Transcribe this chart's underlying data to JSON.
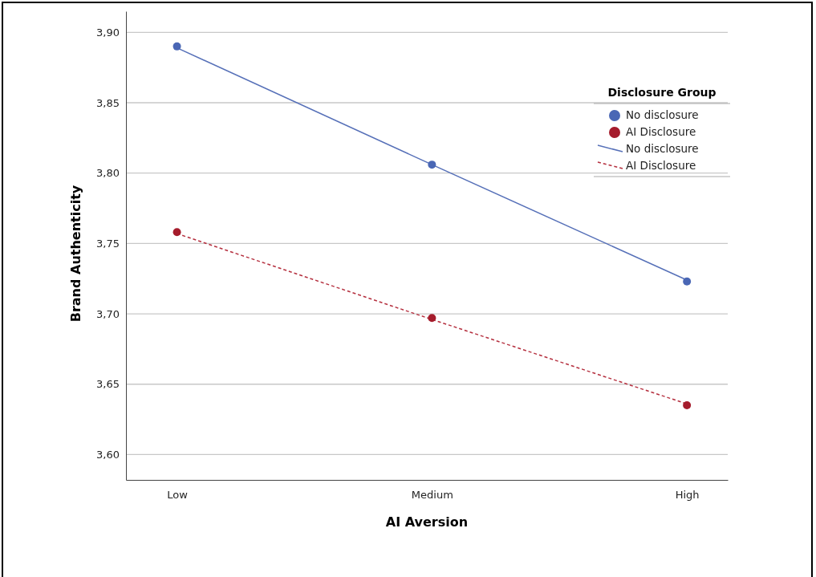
{
  "chart_data": {
    "type": "scatter",
    "xlabel": "AI Aversion",
    "ylabel": "Brand Authenticity",
    "legend_title": "Disclosure Group",
    "categories": [
      "Low",
      "Medium",
      "High"
    ],
    "ylim": [
      3.582,
      3.915
    ],
    "yticks": [
      {
        "value": 3.6,
        "label": "3,60"
      },
      {
        "value": 3.65,
        "label": "3,65"
      },
      {
        "value": 3.7,
        "label": "3,70"
      },
      {
        "value": 3.75,
        "label": "3,75"
      },
      {
        "value": 3.8,
        "label": "3,80"
      },
      {
        "value": 3.85,
        "label": "3,85"
      },
      {
        "value": 3.9,
        "label": "3,90"
      }
    ],
    "grid": "y",
    "legend": "top right",
    "marker": "circle",
    "series": [
      {
        "name": "No disclosure",
        "color": "#4a67b5",
        "values": [
          3.89,
          3.806,
          3.723
        ]
      },
      {
        "name": "AI Disclosure",
        "color": "#a51c2c",
        "values": [
          3.758,
          3.697,
          3.635
        ]
      },
      {
        "name": "No disclosure",
        "type": "line",
        "color": "#5670b8",
        "values": [
          3.889,
          3.806,
          3.724
        ],
        "line_style": "solid",
        "marker": "none"
      },
      {
        "name": "AI Disclosure",
        "type": "line",
        "color": "#b5303f",
        "values": [
          3.757,
          3.696,
          3.636
        ],
        "line_style": "dashed",
        "marker": "none"
      }
    ]
  }
}
